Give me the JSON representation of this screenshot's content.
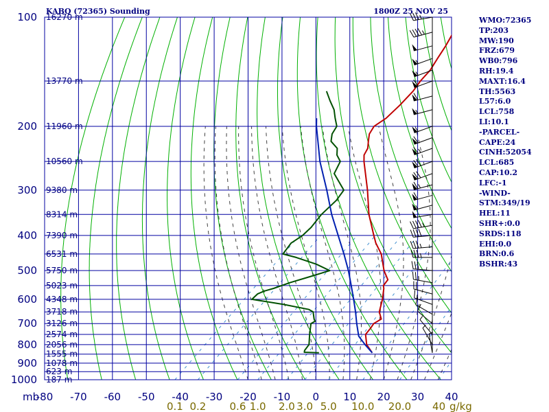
{
  "header": {
    "station": "KABQ (72365) Sounding",
    "time": "1800Z 25 NOV 25"
  },
  "colors": {
    "grid": "#0000a0",
    "dry_adiabats": "#00b000",
    "moist_adiabats": "#404040",
    "mixing_ratio": "#4090d0",
    "temperature": "#c00000",
    "dewpoint": "#005000",
    "parcel": "#0020b0",
    "wind": "#000000"
  },
  "chart_data": {
    "type": "line",
    "chart_kind": "skew-T log-P sounding",
    "pressure_axis": {
      "scale": "log",
      "range_mb": [
        100,
        1000
      ],
      "unit_label": "mb",
      "ticks": [
        100,
        200,
        300,
        400,
        500,
        600,
        700,
        800,
        900,
        1000
      ]
    },
    "temperature_axis": {
      "range_c": [
        -80,
        40
      ],
      "ticks": [
        -80,
        -70,
        -60,
        -50,
        -40,
        -30,
        -20,
        -10,
        0,
        10,
        20,
        30,
        40
      ]
    },
    "height_labels": [
      {
        "p": 100,
        "label": "16270 m"
      },
      {
        "p": 150,
        "label": "13770 m"
      },
      {
        "p": 200,
        "label": "11960 m"
      },
      {
        "p": 250,
        "label": "10560 m"
      },
      {
        "p": 300,
        "label": "9380 m"
      },
      {
        "p": 350,
        "label": "8314 m"
      },
      {
        "p": 400,
        "label": "7390 m"
      },
      {
        "p": 450,
        "label": "6531 m"
      },
      {
        "p": 500,
        "label": "5750 m"
      },
      {
        "p": 550,
        "label": "5023 m"
      },
      {
        "p": 600,
        "label": "4348 m"
      },
      {
        "p": 650,
        "label": "3718 m"
      },
      {
        "p": 700,
        "label": "3126 m"
      },
      {
        "p": 750,
        "label": "2574 m"
      },
      {
        "p": 800,
        "label": "2056 m"
      },
      {
        "p": 850,
        "label": "1555 m"
      },
      {
        "p": 900,
        "label": "1078 m"
      },
      {
        "p": 950,
        "label": "623 m"
      },
      {
        "p": 1000,
        "label": "187 m"
      }
    ],
    "mixing_ratio_ticks": [
      {
        "label": "0.1",
        "w": 0.1
      },
      {
        "label": "0.2",
        "w": 0.2
      },
      {
        "label": "0.6",
        "w": 0.6
      },
      {
        "label": "1.0",
        "w": 1.0
      },
      {
        "label": "2.0",
        "w": 2.0
      },
      {
        "label": "3.0",
        "w": 3.0
      },
      {
        "label": "5.0",
        "w": 5.0
      },
      {
        "label": "10.0",
        "w": 10.0
      },
      {
        "label": "20.0",
        "w": 20.0
      },
      {
        "label": "40",
        "w": 40.0
      }
    ],
    "mixing_ratio_unit": "g/kg",
    "series": [
      {
        "key": "temperature",
        "points": [
          [
            843,
            8.2
          ],
          [
            800,
            4
          ],
          [
            750,
            0.5
          ],
          [
            720,
            0
          ],
          [
            700,
            -0.5
          ],
          [
            680,
            0.3
          ],
          [
            650,
            -2.5
          ],
          [
            600,
            -5.5
          ],
          [
            560,
            -8.5
          ],
          [
            550,
            -9.5
          ],
          [
            530,
            -10
          ],
          [
            500,
            -14
          ],
          [
            450,
            -20
          ],
          [
            420,
            -25
          ],
          [
            400,
            -28
          ],
          [
            350,
            -36
          ],
          [
            300,
            -44
          ],
          [
            250,
            -54
          ],
          [
            240,
            -56
          ],
          [
            230,
            -57
          ],
          [
            220,
            -59
          ],
          [
            210,
            -61
          ],
          [
            200,
            -62
          ],
          [
            190,
            -61
          ],
          [
            175,
            -61
          ],
          [
            160,
            -61.5
          ],
          [
            150,
            -62.5
          ],
          [
            140,
            -63
          ],
          [
            130,
            -64.5
          ],
          [
            120,
            -66
          ],
          [
            110,
            -68
          ],
          [
            100,
            -70
          ]
        ]
      },
      {
        "key": "dewpoint",
        "points": [
          [
            843,
            -7.5
          ],
          [
            840,
            -12
          ],
          [
            830,
            -12.5
          ],
          [
            800,
            -13
          ],
          [
            750,
            -16
          ],
          [
            700,
            -19
          ],
          [
            690,
            -18.5
          ],
          [
            680,
            -19.5
          ],
          [
            650,
            -22
          ],
          [
            640,
            -24
          ],
          [
            620,
            -33
          ],
          [
            600,
            -44
          ],
          [
            580,
            -44
          ],
          [
            570,
            -43
          ],
          [
            560,
            -41
          ],
          [
            540,
            -38
          ],
          [
            520,
            -34
          ],
          [
            500,
            -30
          ],
          [
            480,
            -36
          ],
          [
            460,
            -44
          ],
          [
            450,
            -49
          ],
          [
            420,
            -50
          ],
          [
            400,
            -49
          ],
          [
            380,
            -49
          ],
          [
            350,
            -50
          ],
          [
            320,
            -50
          ],
          [
            300,
            -51
          ],
          [
            270,
            -59
          ],
          [
            250,
            -61
          ],
          [
            240,
            -64
          ],
          [
            230,
            -66
          ],
          [
            220,
            -70
          ],
          [
            210,
            -72
          ],
          [
            200,
            -73
          ],
          [
            190,
            -76
          ],
          [
            180,
            -79
          ],
          [
            170,
            -83
          ],
          [
            160,
            -87
          ]
        ]
      },
      {
        "key": "parcel",
        "points": [
          [
            843,
            8.2
          ],
          [
            800,
            3.5
          ],
          [
            758,
            -1
          ],
          [
            700,
            -5.5
          ],
          [
            650,
            -9.5
          ],
          [
            600,
            -14
          ],
          [
            550,
            -19
          ],
          [
            500,
            -24.5
          ],
          [
            450,
            -31
          ],
          [
            400,
            -38.5
          ],
          [
            350,
            -47
          ],
          [
            300,
            -56
          ],
          [
            250,
            -67
          ],
          [
            200,
            -79
          ],
          [
            190,
            -81.5
          ]
        ]
      }
    ],
    "wind_barbs": [
      {
        "p": 100,
        "dir": 260,
        "spd": 35
      },
      {
        "p": 110,
        "dir": 255,
        "spd": 45
      },
      {
        "p": 120,
        "dir": 255,
        "spd": 50
      },
      {
        "p": 130,
        "dir": 250,
        "spd": 55
      },
      {
        "p": 140,
        "dir": 250,
        "spd": 55
      },
      {
        "p": 150,
        "dir": 250,
        "spd": 60
      },
      {
        "p": 165,
        "dir": 255,
        "spd": 60
      },
      {
        "p": 180,
        "dir": 255,
        "spd": 55
      },
      {
        "p": 200,
        "dir": 250,
        "spd": 55
      },
      {
        "p": 215,
        "dir": 250,
        "spd": 60
      },
      {
        "p": 230,
        "dir": 250,
        "spd": 65
      },
      {
        "p": 250,
        "dir": 250,
        "spd": 70
      },
      {
        "p": 270,
        "dir": 250,
        "spd": 70
      },
      {
        "p": 290,
        "dir": 255,
        "spd": 65
      },
      {
        "p": 310,
        "dir": 255,
        "spd": 60
      },
      {
        "p": 330,
        "dir": 255,
        "spd": 55
      },
      {
        "p": 350,
        "dir": 260,
        "spd": 50
      },
      {
        "p": 375,
        "dir": 260,
        "spd": 45
      },
      {
        "p": 400,
        "dir": 265,
        "spd": 40
      },
      {
        "p": 430,
        "dir": 265,
        "spd": 35
      },
      {
        "p": 460,
        "dir": 270,
        "spd": 35
      },
      {
        "p": 500,
        "dir": 275,
        "spd": 30
      },
      {
        "p": 540,
        "dir": 280,
        "spd": 25
      },
      {
        "p": 580,
        "dir": 285,
        "spd": 20
      },
      {
        "p": 620,
        "dir": 290,
        "spd": 15
      },
      {
        "p": 660,
        "dir": 300,
        "spd": 10
      },
      {
        "p": 700,
        "dir": 310,
        "spd": 10
      },
      {
        "p": 750,
        "dir": 320,
        "spd": 5
      },
      {
        "p": 800,
        "dir": 330,
        "spd": 5
      },
      {
        "p": 843,
        "dir": 350,
        "spd": 5
      }
    ]
  },
  "indices": [
    "WMO:72365",
    "TP:203",
    "MW:190",
    "FRZ:679",
    "WB0:796",
    "RH:19.4",
    "MAXT:16.4",
    "TH:5563",
    "L57:6.0",
    "LCL:758",
    "LI:10.1",
    "-PARCEL-",
    "CAPE:24",
    "CINH:52054",
    "LCL:685",
    "CAP:10.2",
    "LFC:-1",
    "-WIND-",
    "STM:349/19",
    "HEL:11",
    "SHR+:0.0",
    "SRDS:118",
    "EHI:0.0",
    "BRN:0.6",
    "BSHR:43"
  ]
}
